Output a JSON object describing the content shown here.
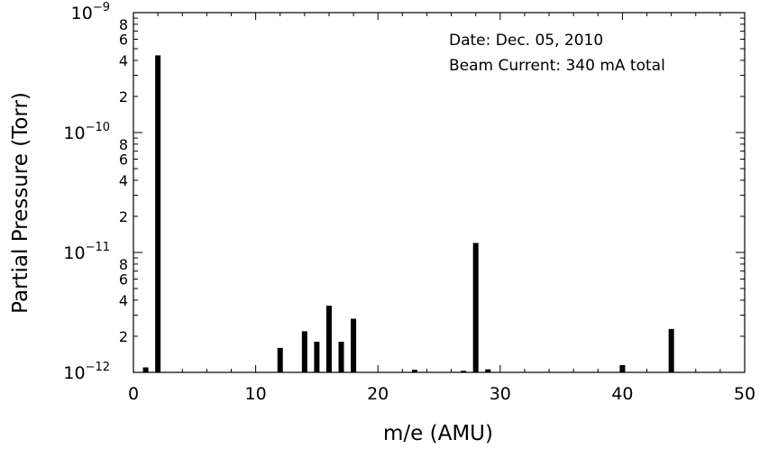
{
  "chart_data": {
    "type": "bar",
    "xlabel": "m/e (AMU)",
    "ylabel": "Partial Pressure (Torr)",
    "xlim": [
      0,
      50
    ],
    "ylim": [
      1e-12,
      1e-09
    ],
    "yscale": "log",
    "x_ticks": [
      "0",
      "10",
      "20",
      "30",
      "40",
      "50"
    ],
    "y_decade_labels": [
      {
        "base": "10",
        "exp": "−12",
        "value": 1e-12
      },
      {
        "base": "10",
        "exp": "−11",
        "value": 1e-11
      },
      {
        "base": "10",
        "exp": "−10",
        "value": 1e-10
      },
      {
        "base": "10",
        "exp": "−9",
        "value": 1e-09
      }
    ],
    "y_minor_labels": [
      "2",
      "4",
      "6",
      "8"
    ],
    "annotations": [
      "Date: Dec. 05, 2010",
      "Beam Current: 340 mA total"
    ],
    "bar_color": "#000000",
    "x": [
      1,
      2,
      12,
      14,
      15,
      16,
      17,
      18,
      23,
      27,
      28,
      29,
      40,
      44
    ],
    "values": [
      1.1e-12,
      4.4e-10,
      1.6e-12,
      2.2e-12,
      1.8e-12,
      3.6e-12,
      1.8e-12,
      2.8e-12,
      1.05e-12,
      1.03e-12,
      1.2e-11,
      1.06e-12,
      1.15e-12,
      2.3e-12
    ]
  }
}
